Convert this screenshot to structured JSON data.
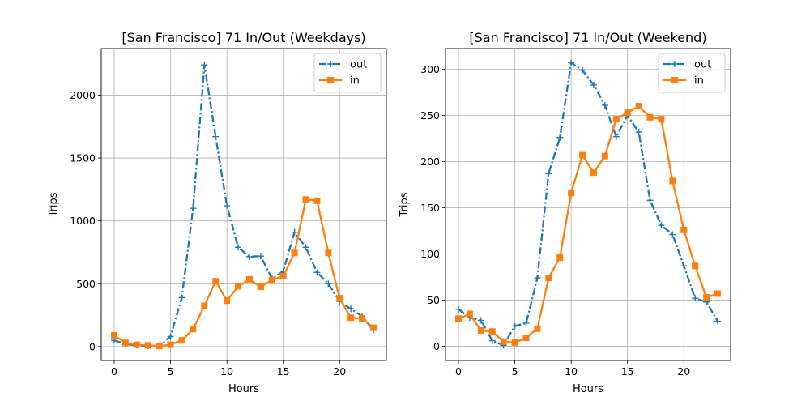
{
  "chart_data": [
    {
      "type": "line",
      "title": "[San Francisco] 71 In/Out (Weekdays)",
      "xlabel": "Hours",
      "ylabel": "Trips",
      "xlim": [
        -1.15,
        24.15
      ],
      "ylim": [
        -110,
        2370
      ],
      "xticks": [
        0,
        5,
        10,
        15,
        20
      ],
      "yticks": [
        0,
        500,
        1000,
        1500,
        2000
      ],
      "grid": true,
      "legend_position": "upper right",
      "x": [
        0,
        1,
        2,
        3,
        4,
        5,
        6,
        7,
        8,
        9,
        10,
        11,
        12,
        13,
        14,
        15,
        16,
        17,
        18,
        19,
        20,
        21,
        22,
        23
      ],
      "series": [
        {
          "name": "out",
          "color": "#1f77b4",
          "linestyle": "dashdot",
          "marker": "plus",
          "values": [
            50,
            20,
            10,
            5,
            5,
            80,
            390,
            1100,
            2240,
            1670,
            1120,
            790,
            715,
            720,
            540,
            600,
            910,
            790,
            590,
            500,
            360,
            300,
            240,
            130
          ]
        },
        {
          "name": "in",
          "color": "#ff7f0e",
          "linestyle": "solid",
          "marker": "square",
          "values": [
            90,
            30,
            15,
            10,
            5,
            15,
            50,
            140,
            325,
            520,
            365,
            480,
            535,
            475,
            530,
            560,
            745,
            1170,
            1160,
            745,
            385,
            230,
            225,
            150
          ]
        }
      ]
    },
    {
      "type": "line",
      "title": "[San Francisco] 71 In/Out (Weekend)",
      "xlabel": "Hours",
      "ylabel": "Trips",
      "xlim": [
        -1.15,
        24.15
      ],
      "ylim": [
        -15.4,
        322.4
      ],
      "xticks": [
        0,
        5,
        10,
        15,
        20
      ],
      "yticks": [
        0,
        50,
        100,
        150,
        200,
        250,
        300
      ],
      "grid": true,
      "legend_position": "upper right",
      "x": [
        0,
        1,
        2,
        3,
        4,
        5,
        6,
        7,
        8,
        9,
        10,
        11,
        12,
        13,
        14,
        15,
        16,
        17,
        18,
        19,
        20,
        21,
        22,
        23
      ],
      "series": [
        {
          "name": "out",
          "color": "#1f77b4",
          "linestyle": "dashdot",
          "marker": "plus",
          "values": [
            40,
            31,
            28,
            6,
            1,
            22,
            25,
            74,
            187,
            226,
            307,
            299,
            283,
            261,
            227,
            250,
            232,
            158,
            131,
            121,
            87,
            52,
            48,
            27
          ]
        },
        {
          "name": "in",
          "color": "#ff7f0e",
          "linestyle": "solid",
          "marker": "square",
          "values": [
            30,
            35,
            17,
            16,
            5,
            4,
            9,
            19,
            74,
            96,
            166,
            207,
            188,
            206,
            246,
            253,
            260,
            248,
            246,
            179,
            126,
            87,
            53,
            57
          ]
        }
      ]
    }
  ]
}
